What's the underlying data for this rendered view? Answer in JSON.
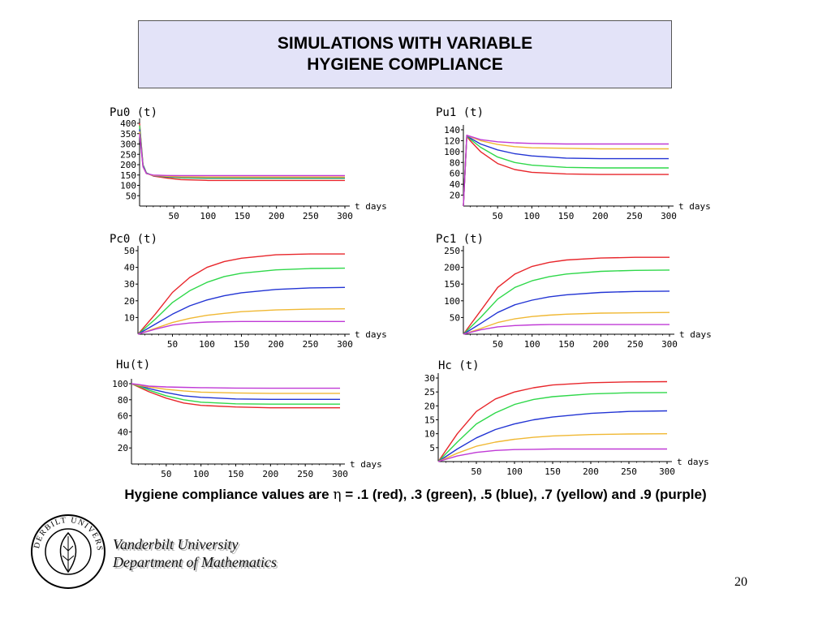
{
  "title": {
    "line1": "SIMULATIONS WITH VARIABLE",
    "line2": "HYGIENE COMPLIANCE"
  },
  "caption": {
    "prefix": "Hygiene compliance values are ",
    "symbol": "η",
    "suffix": " = .1 (red), .3 (green), .5 (blue), .7 (yellow) and .9 (purple)"
  },
  "footer": {
    "line1": "Vanderbilt University",
    "line2": "Department of Mathematics",
    "page": "20"
  },
  "logo": {
    "text": "VANDERBILT UNIVERSITY"
  },
  "colors": {
    "red": "#e8262b",
    "green": "#2fd84a",
    "blue": "#2234d4",
    "yellow": "#f0b833",
    "purple": "#c03ad6"
  },
  "chart_data": [
    {
      "type": "line",
      "title": "Pu0 (t)",
      "xlabel": "t days",
      "xlim": [
        0,
        300
      ],
      "ylim": [
        0,
        400
      ],
      "xticks": [
        50,
        100,
        150,
        200,
        250,
        300
      ],
      "yticks": [
        50,
        100,
        150,
        200,
        250,
        300,
        350,
        400
      ],
      "series": [
        {
          "color": "red",
          "x": [
            0,
            5,
            10,
            20,
            40,
            60,
            100,
            150,
            200,
            300
          ],
          "y": [
            400,
            200,
            160,
            145,
            135,
            128,
            124,
            124,
            124,
            124
          ]
        },
        {
          "color": "green",
          "x": [
            0,
            5,
            10,
            20,
            40,
            60,
            100,
            150,
            200,
            300
          ],
          "y": [
            390,
            200,
            160,
            147,
            140,
            136,
            134,
            134,
            134,
            134
          ]
        },
        {
          "color": "blue",
          "x": [
            0,
            5,
            10,
            20,
            40,
            60,
            100,
            150,
            200,
            300
          ],
          "y": [
            370,
            195,
            158,
            147,
            142,
            139,
            138,
            138,
            138,
            138
          ]
        },
        {
          "color": "yellow",
          "x": [
            0,
            5,
            10,
            20,
            40,
            60,
            100,
            150,
            200,
            300
          ],
          "y": [
            360,
            190,
            157,
            148,
            144,
            141,
            140,
            140,
            140,
            140
          ]
        },
        {
          "color": "purple",
          "x": [
            0,
            5,
            10,
            20,
            40,
            60,
            100,
            150,
            200,
            300
          ],
          "y": [
            350,
            190,
            157,
            150,
            148,
            147,
            147,
            147,
            147,
            147
          ]
        }
      ]
    },
    {
      "type": "line",
      "title": "Pu1 (t)",
      "xlabel": "t days",
      "xlim": [
        0,
        300
      ],
      "ylim": [
        0,
        140
      ],
      "xticks": [
        50,
        100,
        150,
        200,
        250,
        300
      ],
      "yticks": [
        20,
        40,
        60,
        80,
        100,
        120,
        140
      ],
      "series": [
        {
          "color": "red",
          "x": [
            0,
            5,
            10,
            25,
            50,
            75,
            100,
            150,
            200,
            300
          ],
          "y": [
            0,
            128,
            120,
            100,
            78,
            67,
            62,
            59,
            58,
            58
          ]
        },
        {
          "color": "green",
          "x": [
            0,
            5,
            10,
            25,
            50,
            75,
            100,
            150,
            200,
            300
          ],
          "y": [
            0,
            129,
            123,
            108,
            90,
            80,
            75,
            71,
            70,
            70
          ]
        },
        {
          "color": "blue",
          "x": [
            0,
            5,
            10,
            25,
            50,
            75,
            100,
            150,
            200,
            300
          ],
          "y": [
            0,
            130,
            125,
            114,
            103,
            96,
            92,
            88,
            87,
            87
          ]
        },
        {
          "color": "yellow",
          "x": [
            0,
            5,
            10,
            25,
            50,
            75,
            100,
            150,
            200,
            300
          ],
          "y": [
            0,
            130,
            127,
            120,
            113,
            109,
            107,
            106,
            105,
            105
          ]
        },
        {
          "color": "purple",
          "x": [
            0,
            5,
            10,
            25,
            50,
            75,
            100,
            150,
            200,
            300
          ],
          "y": [
            0,
            130,
            128,
            122,
            118,
            116,
            115,
            114,
            114,
            114
          ]
        }
      ]
    },
    {
      "type": "line",
      "title": "Pc0 (t)",
      "xlabel": "t days",
      "xlim": [
        0,
        300
      ],
      "ylim": [
        0,
        50
      ],
      "xticks": [
        50,
        100,
        150,
        200,
        250,
        300
      ],
      "yticks": [
        10,
        20,
        30,
        40,
        50
      ],
      "series": [
        {
          "color": "red",
          "x": [
            0,
            25,
            50,
            75,
            100,
            125,
            150,
            200,
            250,
            300
          ],
          "y": [
            0,
            12,
            25,
            34,
            40,
            43.5,
            45.5,
            47.5,
            48,
            48
          ]
        },
        {
          "color": "green",
          "x": [
            0,
            25,
            50,
            75,
            100,
            125,
            150,
            200,
            250,
            300
          ],
          "y": [
            0,
            9,
            19,
            26,
            31,
            34.5,
            36.5,
            38.5,
            39.3,
            39.5
          ]
        },
        {
          "color": "blue",
          "x": [
            0,
            25,
            50,
            75,
            100,
            125,
            150,
            200,
            250,
            300
          ],
          "y": [
            0,
            6,
            12,
            17,
            20.5,
            23,
            24.8,
            26.8,
            27.7,
            28
          ]
        },
        {
          "color": "yellow",
          "x": [
            0,
            25,
            50,
            75,
            100,
            125,
            150,
            200,
            250,
            300
          ],
          "y": [
            0,
            3.5,
            7,
            9.5,
            11.3,
            12.5,
            13.5,
            14.5,
            15,
            15.2
          ]
        },
        {
          "color": "purple",
          "x": [
            0,
            25,
            50,
            75,
            100,
            125,
            150,
            200,
            250,
            300
          ],
          "y": [
            0,
            3,
            5.5,
            6.7,
            7.3,
            7.5,
            7.6,
            7.6,
            7.6,
            7.6
          ]
        }
      ]
    },
    {
      "type": "line",
      "title": "Pc1 (t)",
      "xlabel": "t days",
      "xlim": [
        0,
        300
      ],
      "ylim": [
        0,
        250
      ],
      "xticks": [
        50,
        100,
        150,
        200,
        250,
        300
      ],
      "yticks": [
        50,
        100,
        150,
        200,
        250
      ],
      "series": [
        {
          "color": "red",
          "x": [
            0,
            25,
            50,
            75,
            100,
            125,
            150,
            200,
            250,
            300
          ],
          "y": [
            0,
            70,
            140,
            180,
            203,
            215,
            222,
            228,
            230,
            230
          ]
        },
        {
          "color": "green",
          "x": [
            0,
            25,
            50,
            75,
            100,
            125,
            150,
            200,
            250,
            300
          ],
          "y": [
            0,
            50,
            105,
            140,
            160,
            172,
            180,
            188,
            191,
            192
          ]
        },
        {
          "color": "blue",
          "x": [
            0,
            25,
            50,
            75,
            100,
            125,
            150,
            200,
            250,
            300
          ],
          "y": [
            0,
            32,
            65,
            88,
            102,
            112,
            118,
            125,
            128,
            129
          ]
        },
        {
          "color": "yellow",
          "x": [
            0,
            25,
            50,
            75,
            100,
            125,
            150,
            200,
            250,
            300
          ],
          "y": [
            0,
            17,
            35,
            46,
            53,
            57,
            60,
            63,
            64,
            65
          ]
        },
        {
          "color": "purple",
          "x": [
            0,
            25,
            50,
            75,
            100,
            125,
            150,
            200,
            250,
            300
          ],
          "y": [
            0,
            13,
            22,
            26,
            28,
            29,
            29,
            29,
            29,
            29
          ]
        }
      ]
    },
    {
      "type": "line",
      "title": "Hu(t)",
      "xlabel": "t days",
      "xlim": [
        0,
        300
      ],
      "ylim": [
        0,
        100
      ],
      "xticks": [
        50,
        100,
        150,
        200,
        250,
        300
      ],
      "yticks": [
        20,
        40,
        60,
        80,
        100
      ],
      "series": [
        {
          "color": "red",
          "x": [
            0,
            10,
            25,
            50,
            75,
            100,
            150,
            200,
            300
          ],
          "y": [
            100,
            96,
            90,
            82,
            76,
            73,
            71,
            70,
            70
          ]
        },
        {
          "color": "green",
          "x": [
            0,
            10,
            25,
            50,
            75,
            100,
            150,
            200,
            300
          ],
          "y": [
            100,
            97,
            92,
            85,
            80,
            77,
            75,
            74.5,
            74.5
          ]
        },
        {
          "color": "blue",
          "x": [
            0,
            10,
            25,
            50,
            75,
            100,
            150,
            200,
            300
          ],
          "y": [
            100,
            98,
            94,
            89,
            85,
            83,
            81,
            80.5,
            80.5
          ]
        },
        {
          "color": "yellow",
          "x": [
            0,
            10,
            25,
            50,
            75,
            100,
            150,
            200,
            300
          ],
          "y": [
            100,
            98,
            96,
            93,
            91,
            89.5,
            88.5,
            88,
            88
          ]
        },
        {
          "color": "purple",
          "x": [
            0,
            10,
            25,
            50,
            75,
            100,
            150,
            200,
            300
          ],
          "y": [
            100,
            99,
            97,
            96,
            95.5,
            95,
            94.5,
            94.3,
            94.3
          ]
        }
      ]
    },
    {
      "type": "line",
      "title": "Hc (t)",
      "xlabel": "t days",
      "xlim": [
        0,
        300
      ],
      "ylim": [
        0,
        30
      ],
      "xticks": [
        50,
        100,
        150,
        200,
        250,
        300
      ],
      "yticks": [
        5,
        10,
        15,
        20,
        25,
        30
      ],
      "series": [
        {
          "color": "red",
          "x": [
            0,
            25,
            50,
            75,
            100,
            125,
            150,
            200,
            250,
            300
          ],
          "y": [
            0,
            10,
            18,
            22.5,
            25,
            26.5,
            27.5,
            28.3,
            28.6,
            28.7
          ]
        },
        {
          "color": "green",
          "x": [
            0,
            25,
            50,
            75,
            100,
            125,
            150,
            200,
            250,
            300
          ],
          "y": [
            0,
            7,
            13.5,
            17.5,
            20.5,
            22.3,
            23.3,
            24.3,
            24.7,
            24.8
          ]
        },
        {
          "color": "blue",
          "x": [
            0,
            25,
            50,
            75,
            100,
            125,
            150,
            200,
            250,
            300
          ],
          "y": [
            0,
            4.5,
            8.5,
            11.5,
            13.5,
            15,
            16,
            17.3,
            18,
            18.2
          ]
        },
        {
          "color": "yellow",
          "x": [
            0,
            25,
            50,
            75,
            100,
            125,
            150,
            200,
            250,
            300
          ],
          "y": [
            0,
            3,
            5.5,
            7,
            8,
            8.7,
            9.2,
            9.7,
            9.9,
            10
          ]
        },
        {
          "color": "purple",
          "x": [
            0,
            25,
            50,
            75,
            100,
            125,
            150,
            200,
            250,
            300
          ],
          "y": [
            0,
            2,
            3.3,
            4,
            4.3,
            4.4,
            4.5,
            4.5,
            4.5,
            4.5
          ]
        }
      ]
    }
  ]
}
